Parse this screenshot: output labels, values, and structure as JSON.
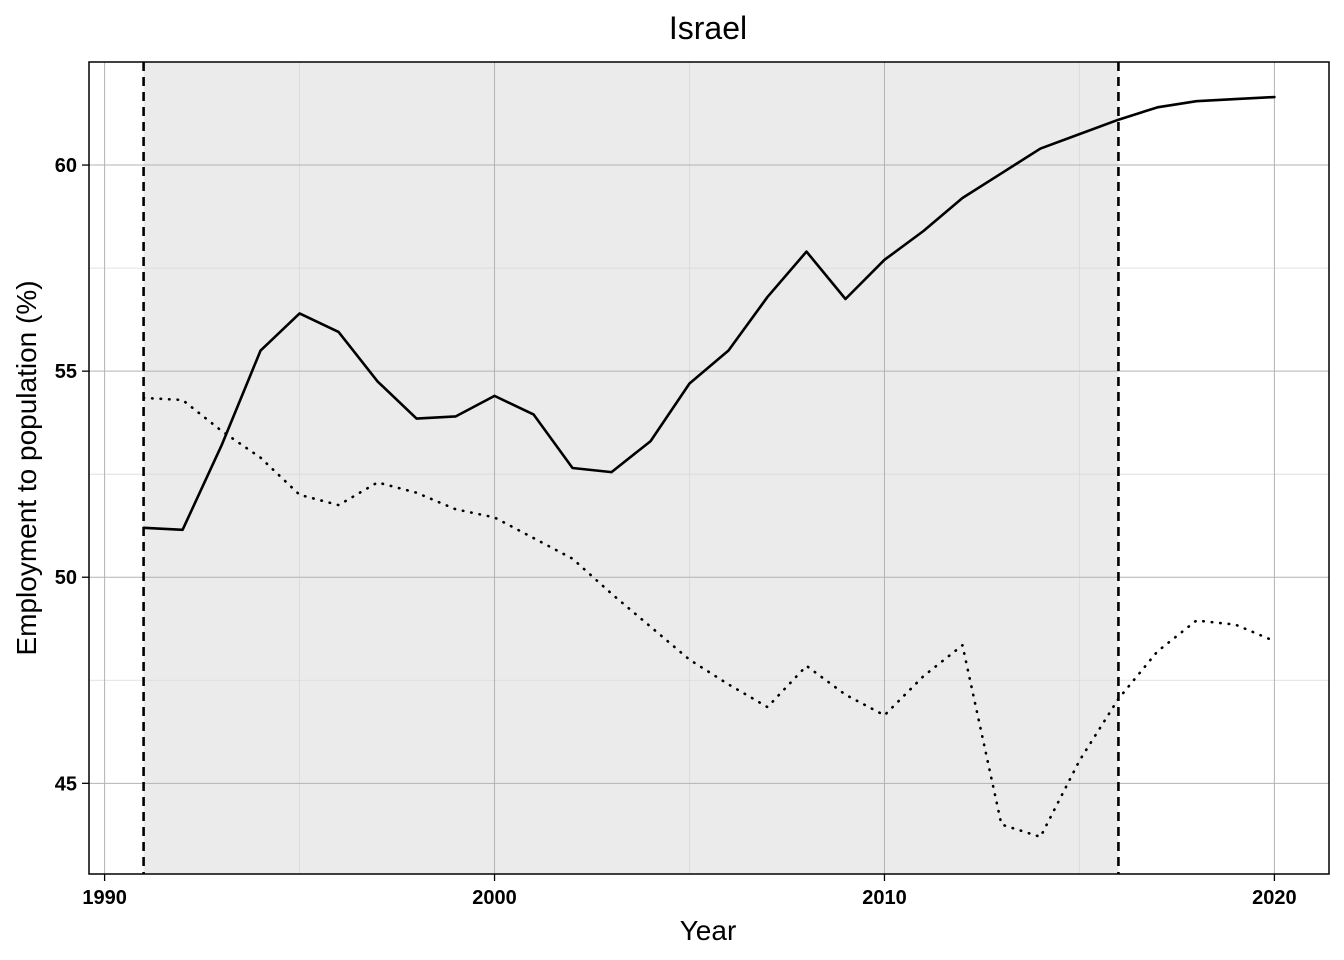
{
  "chart_data": {
    "type": "line",
    "title": "Israel",
    "xlabel": "Year",
    "ylabel": "Employment to population (%)",
    "xlim": [
      1989.6,
      2021.4
    ],
    "ylim": [
      42.8,
      62.5
    ],
    "x_ticks": [
      1990,
      2000,
      2010,
      2020
    ],
    "y_ticks": [
      45,
      50,
      55,
      60
    ],
    "x_minor_ticks": [
      1995,
      2005,
      2015
    ],
    "y_minor_ticks": [
      47.5,
      52.5,
      57.5
    ],
    "grid": true,
    "shaded_region": [
      1991,
      2016
    ],
    "vertical_lines": [
      1991,
      2016
    ],
    "series": [
      {
        "style": "solid",
        "color": "#000000",
        "x": [
          1991,
          1992,
          1993,
          1994,
          1995,
          1996,
          1997,
          1998,
          1999,
          2000,
          2001,
          2002,
          2003,
          2004,
          2005,
          2006,
          2007,
          2008,
          2009,
          2010,
          2011,
          2012,
          2013,
          2014,
          2015,
          2016,
          2017,
          2018,
          2019,
          2020
        ],
        "values": [
          51.2,
          51.15,
          53.2,
          55.5,
          56.4,
          55.95,
          54.75,
          53.85,
          53.9,
          54.4,
          53.95,
          52.65,
          52.55,
          53.3,
          54.7,
          55.5,
          56.8,
          57.9,
          56.75,
          57.7,
          58.4,
          59.2,
          59.8,
          60.4,
          60.75,
          61.1,
          61.4,
          61.55,
          61.6,
          61.65
        ]
      },
      {
        "style": "dotted",
        "color": "#000000",
        "x": [
          1991,
          1992,
          1993,
          1994,
          1995,
          1996,
          1997,
          1998,
          1999,
          2000,
          2001,
          2002,
          2003,
          2004,
          2005,
          2006,
          2007,
          2008,
          2009,
          2010,
          2011,
          2012,
          2013,
          2014,
          2015,
          2016,
          2017,
          2018,
          2019,
          2020
        ],
        "values": [
          54.35,
          54.3,
          53.55,
          52.9,
          52.0,
          51.75,
          52.3,
          52.05,
          51.65,
          51.45,
          50.95,
          50.45,
          49.6,
          48.8,
          48.0,
          47.4,
          46.85,
          47.85,
          47.15,
          46.65,
          47.6,
          48.35,
          44.0,
          43.7,
          45.55,
          47.05,
          48.2,
          48.95,
          48.85,
          48.45
        ]
      }
    ]
  }
}
